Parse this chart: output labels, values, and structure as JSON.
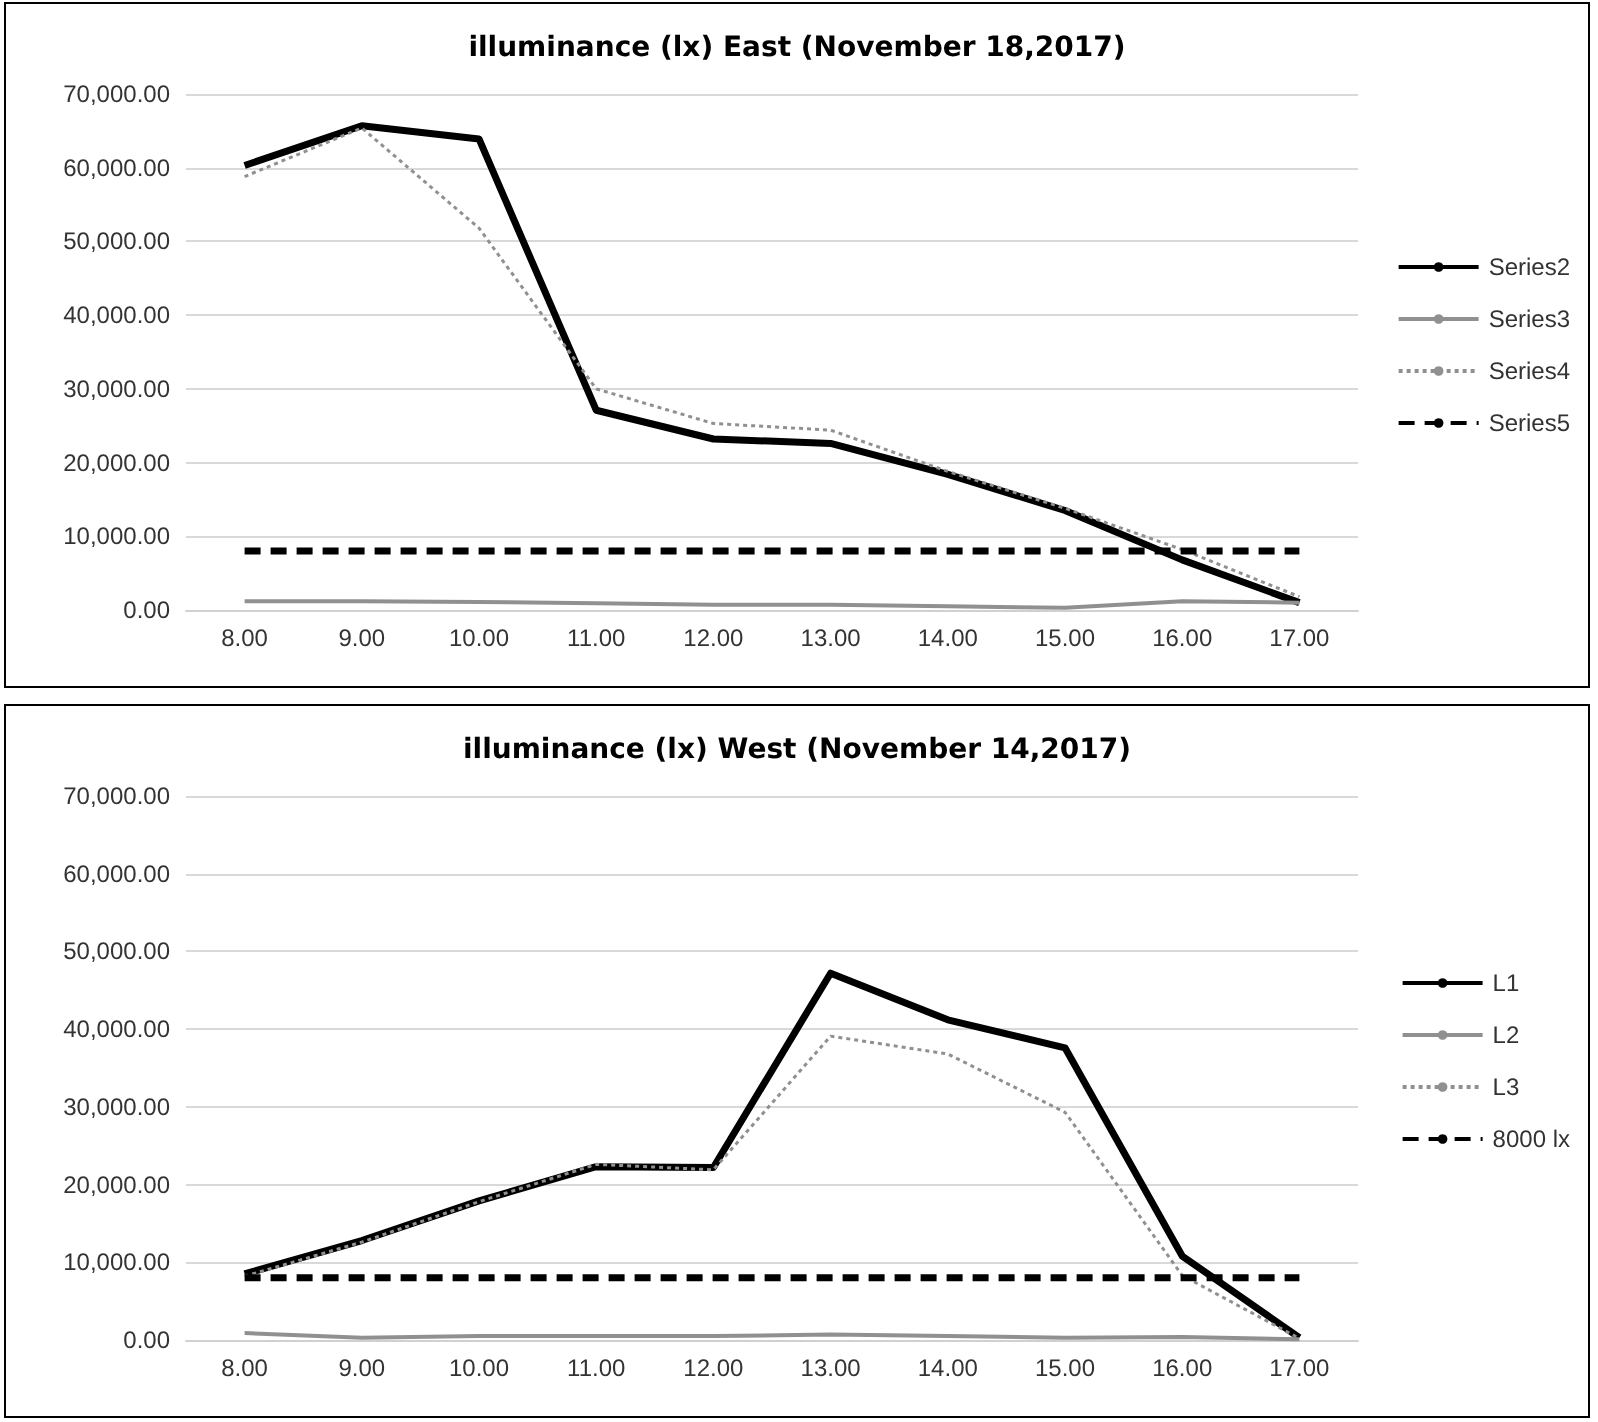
{
  "chart_data": [
    {
      "type": "line",
      "title": "illuminance (lx) East (November 18,2017)",
      "categories": [
        "8.00",
        "9.00",
        "10.00",
        "11.00",
        "12.00",
        "13.00",
        "14.00",
        "15.00",
        "16.00",
        "17.00"
      ],
      "series": [
        {
          "name": "Series2",
          "color": "#000000",
          "line_style": "solid",
          "values": [
            60300,
            65700,
            63900,
            27100,
            23200,
            22600,
            18400,
            13500,
            6800,
            1000
          ]
        },
        {
          "name": "Series3",
          "color": "#909090",
          "line_style": "solid",
          "values": [
            1200,
            1200,
            1100,
            900,
            700,
            700,
            500,
            300,
            1200,
            1000
          ]
        },
        {
          "name": "Series4",
          "color": "#909090",
          "line_style": "dotted",
          "values": [
            58800,
            65400,
            51800,
            30000,
            25300,
            24400,
            18800,
            13800,
            8200,
            1800
          ]
        },
        {
          "name": "Series5",
          "color": "#000000",
          "line_style": "dashed",
          "values": [
            8000,
            8000,
            8000,
            8000,
            8000,
            8000,
            8000,
            8000,
            8000,
            8000
          ]
        }
      ],
      "ylim": [
        0,
        70000
      ],
      "yticks": [
        {
          "value": 0,
          "label": "0.00"
        },
        {
          "value": 10000,
          "label": "10,000.00"
        },
        {
          "value": 20000,
          "label": "20,000.00"
        },
        {
          "value": 30000,
          "label": "30,000.00"
        },
        {
          "value": 40000,
          "label": "40,000.00"
        },
        {
          "value": 50000,
          "label": "50,000.00"
        },
        {
          "value": 60000,
          "label": "60,000.00"
        },
        {
          "value": 70000,
          "label": "70,000.00"
        }
      ],
      "grid": "y",
      "legend": "right",
      "marker": "none"
    },
    {
      "type": "line",
      "title": "illuminance (lx) West (November 14,2017)",
      "categories": [
        "8.00",
        "9.00",
        "10.00",
        "11.00",
        "12.00",
        "13.00",
        "14.00",
        "15.00",
        "16.00",
        "17.00"
      ],
      "series": [
        {
          "name": "L1",
          "color": "#000000",
          "line_style": "solid",
          "values": [
            8500,
            12800,
            17900,
            22300,
            22200,
            47200,
            41200,
            37600,
            10800,
            300
          ]
        },
        {
          "name": "L2",
          "color": "#909090",
          "line_style": "solid",
          "values": [
            900,
            300,
            500,
            500,
            500,
            700,
            500,
            300,
            400,
            100
          ]
        },
        {
          "name": "L3",
          "color": "#909090",
          "line_style": "dotted",
          "values": [
            8200,
            12600,
            17800,
            22600,
            21900,
            39100,
            36800,
            29300,
            8300,
            200
          ]
        },
        {
          "name": "8000 lx",
          "color": "#000000",
          "line_style": "dashed",
          "values": [
            8000,
            8000,
            8000,
            8000,
            8000,
            8000,
            8000,
            8000,
            8000,
            8000
          ]
        }
      ],
      "ylim": [
        0,
        70000
      ],
      "yticks": [
        {
          "value": 0,
          "label": "0.00"
        },
        {
          "value": 10000,
          "label": "10,000.00"
        },
        {
          "value": 20000,
          "label": "20,000.00"
        },
        {
          "value": 30000,
          "label": "30,000.00"
        },
        {
          "value": 40000,
          "label": "40,000.00"
        },
        {
          "value": 50000,
          "label": "50,000.00"
        },
        {
          "value": 60000,
          "label": "60,000.00"
        },
        {
          "value": 70000,
          "label": "70,000.00"
        }
      ],
      "grid": "y",
      "legend": "right",
      "marker": "none"
    }
  ]
}
